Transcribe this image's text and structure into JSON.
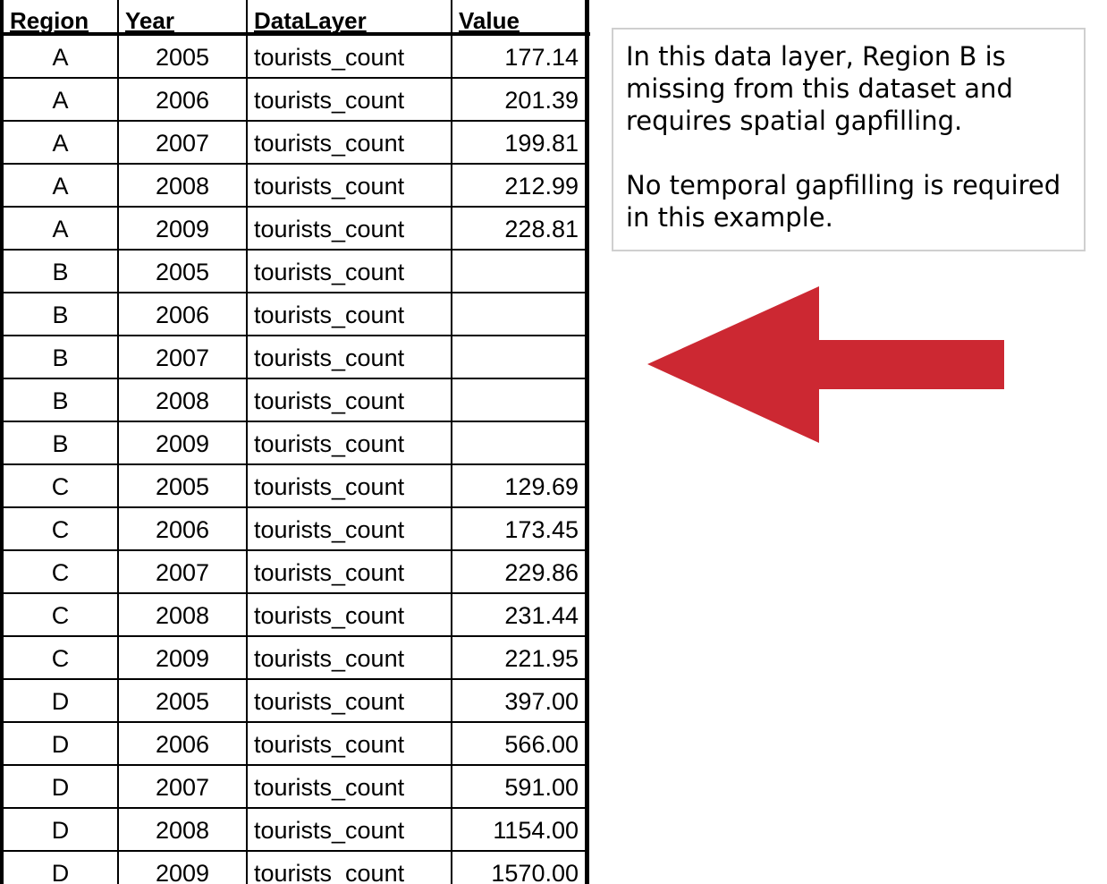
{
  "table": {
    "headers": {
      "region": "Region",
      "year": "Year",
      "datalayer": "DataLayer",
      "value": "Value"
    },
    "rows": [
      {
        "region": "A",
        "year": "2005",
        "datalayer": "tourists_count",
        "value": "177.14"
      },
      {
        "region": "A",
        "year": "2006",
        "datalayer": "tourists_count",
        "value": "201.39"
      },
      {
        "region": "A",
        "year": "2007",
        "datalayer": "tourists_count",
        "value": "199.81"
      },
      {
        "region": "A",
        "year": "2008",
        "datalayer": "tourists_count",
        "value": "212.99"
      },
      {
        "region": "A",
        "year": "2009",
        "datalayer": "tourists_count",
        "value": "228.81"
      },
      {
        "region": "B",
        "year": "2005",
        "datalayer": "tourists_count",
        "value": ""
      },
      {
        "region": "B",
        "year": "2006",
        "datalayer": "tourists_count",
        "value": ""
      },
      {
        "region": "B",
        "year": "2007",
        "datalayer": "tourists_count",
        "value": ""
      },
      {
        "region": "B",
        "year": "2008",
        "datalayer": "tourists_count",
        "value": ""
      },
      {
        "region": "B",
        "year": "2009",
        "datalayer": "tourists_count",
        "value": ""
      },
      {
        "region": "C",
        "year": "2005",
        "datalayer": "tourists_count",
        "value": "129.69"
      },
      {
        "region": "C",
        "year": "2006",
        "datalayer": "tourists_count",
        "value": "173.45"
      },
      {
        "region": "C",
        "year": "2007",
        "datalayer": "tourists_count",
        "value": "229.86"
      },
      {
        "region": "C",
        "year": "2008",
        "datalayer": "tourists_count",
        "value": "231.44"
      },
      {
        "region": "C",
        "year": "2009",
        "datalayer": "tourists_count",
        "value": "221.95"
      },
      {
        "region": "D",
        "year": "2005",
        "datalayer": "tourists_count",
        "value": "397.00"
      },
      {
        "region": "D",
        "year": "2006",
        "datalayer": "tourists_count",
        "value": "566.00"
      },
      {
        "region": "D",
        "year": "2007",
        "datalayer": "tourists_count",
        "value": "591.00"
      },
      {
        "region": "D",
        "year": "2008",
        "datalayer": "tourists_count",
        "value": "1154.00"
      },
      {
        "region": "D",
        "year": "2009",
        "datalayer": "tourists_count",
        "value": "1570.00"
      }
    ]
  },
  "note": {
    "paragraph1": "In this data layer, Region B is missing from this dataset and requires spatial gapfilling.",
    "paragraph2": "No temporal gapfilling is required in this example."
  },
  "arrow": {
    "icon": "left-arrow-icon",
    "color": "#cc2832"
  }
}
